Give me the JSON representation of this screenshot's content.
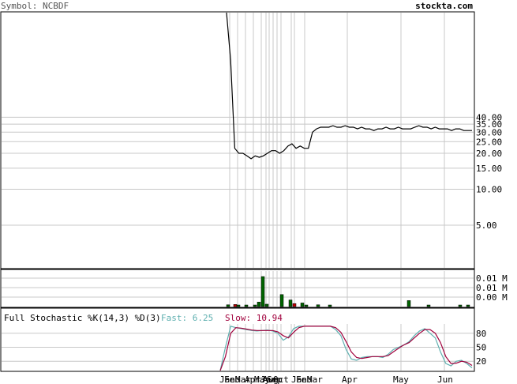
{
  "header": {
    "symbol_label": "Symbol: NCBDF",
    "site": "stockta.com"
  },
  "colors": {
    "grid": "#c8c8c8",
    "frame": "#000000",
    "price_line": "#000000",
    "volume_up": "#006400",
    "volume_down": "#c00000",
    "fast_line": "#5fb0b0",
    "slow_line": "#a0003c",
    "site_text": "#4a8c8c"
  },
  "chart_data": [
    {
      "type": "line",
      "panel": "price",
      "yscale": "log",
      "ylim": [
        2.2,
        300
      ],
      "y_ticks": [
        {
          "label": "40.00",
          "value": 40
        },
        {
          "label": "35.00",
          "value": 35
        },
        {
          "label": "30.00",
          "value": 30
        },
        {
          "label": "25.00",
          "value": 25
        },
        {
          "label": "20.00",
          "value": 20
        },
        {
          "label": "15.00",
          "value": 15
        },
        {
          "label": "10.00",
          "value": 10
        },
        {
          "label": "5.00",
          "value": 5
        }
      ],
      "series": [
        {
          "values": [
            300,
            120,
            22,
            20,
            20,
            19,
            18,
            19,
            18.5,
            19,
            20,
            21,
            21,
            20,
            21,
            23,
            24,
            22,
            23,
            22,
            22,
            30,
            32,
            33,
            33,
            33,
            34,
            33,
            33,
            34,
            33,
            33,
            32,
            33,
            32,
            32,
            31,
            32,
            32,
            33,
            32,
            32,
            33,
            32,
            32,
            32,
            33,
            34,
            33,
            33,
            32,
            33,
            32,
            32,
            32,
            31,
            32,
            32,
            31,
            31,
            31
          ]
        }
      ]
    },
    {
      "type": "bar",
      "panel": "volume",
      "y_ticks": [
        "0.01 M",
        "0.01 M",
        "0.00 M"
      ],
      "bars": [
        {
          "v": 0.06,
          "c": "up"
        },
        {
          "v": 0.07,
          "c": "down"
        },
        {
          "v": 0.05,
          "c": "up"
        },
        {
          "v": 0.04,
          "c": "up"
        },
        {
          "v": 0.04,
          "c": "up"
        },
        {
          "v": 0.15,
          "c": "up"
        },
        {
          "v": 1.0,
          "c": "up"
        },
        {
          "v": 0.08,
          "c": "up"
        },
        {
          "v": 0.4,
          "c": "up"
        },
        {
          "v": 0.22,
          "c": "up"
        },
        {
          "v": 0.1,
          "c": "down"
        },
        {
          "v": 0.12,
          "c": "up"
        },
        {
          "v": 0.05,
          "c": "up"
        },
        {
          "v": 0.06,
          "c": "up"
        },
        {
          "v": 0.03,
          "c": "up"
        },
        {
          "v": 0.2,
          "c": "up"
        },
        {
          "v": 0.04,
          "c": "up"
        },
        {
          "v": 0.03,
          "c": "up"
        },
        {
          "v": 0.05,
          "c": "up"
        }
      ]
    },
    {
      "type": "line",
      "panel": "stochastic",
      "title": "Full Stochastic %K(14,3) %D(3)",
      "fast_label": "Fast: 6.25",
      "slow_label": "Slow: 10.94",
      "ylim": [
        0,
        100
      ],
      "y_ticks": [
        {
          "label": "80",
          "value": 80
        },
        {
          "label": "50",
          "value": 50
        },
        {
          "label": "20",
          "value": 20
        }
      ],
      "series": [
        {
          "name": "Fast",
          "values": [
            0,
            50,
            95,
            92,
            90,
            88,
            86,
            85,
            86,
            87,
            85,
            80,
            65,
            72,
            90,
            95,
            95,
            95,
            95,
            95,
            95,
            95,
            88,
            75,
            45,
            25,
            22,
            28,
            30,
            30,
            30,
            28,
            35,
            45,
            50,
            55,
            62,
            75,
            85,
            90,
            80,
            70,
            40,
            15,
            10,
            20,
            22,
            15,
            6
          ]
        },
        {
          "name": "Slow",
          "values": [
            0,
            30,
            80,
            92,
            91,
            89,
            87,
            86,
            86,
            86,
            86,
            83,
            75,
            70,
            82,
            92,
            95,
            95,
            95,
            95,
            95,
            95,
            92,
            82,
            62,
            40,
            28,
            26,
            28,
            30,
            30,
            30,
            32,
            40,
            48,
            55,
            60,
            70,
            80,
            88,
            88,
            80,
            60,
            30,
            15,
            16,
            20,
            18,
            11
          ]
        }
      ]
    }
  ],
  "x_axis": {
    "labels": [
      {
        "text": "Jan",
        "i": 0
      },
      {
        "text": "Feb",
        "i": 1
      },
      {
        "text": "Mar",
        "i": 2
      },
      {
        "text": "Apr",
        "i": 3
      },
      {
        "text": "May",
        "i": 4
      },
      {
        "text": "Jun",
        "i": 5
      },
      {
        "text": "Aug",
        "i": 6
      },
      {
        "text": "Sep",
        "i": 7
      },
      {
        "text": "Oct",
        "i": 8
      },
      {
        "text": "Jan",
        "i": 9
      },
      {
        "text": "Feb",
        "i": 10
      },
      {
        "text": "Mar",
        "i": 11
      },
      {
        "text": "Apr",
        "i": 12
      },
      {
        "text": "May",
        "i": 13
      },
      {
        "text": "Jun",
        "i": 14
      }
    ]
  }
}
